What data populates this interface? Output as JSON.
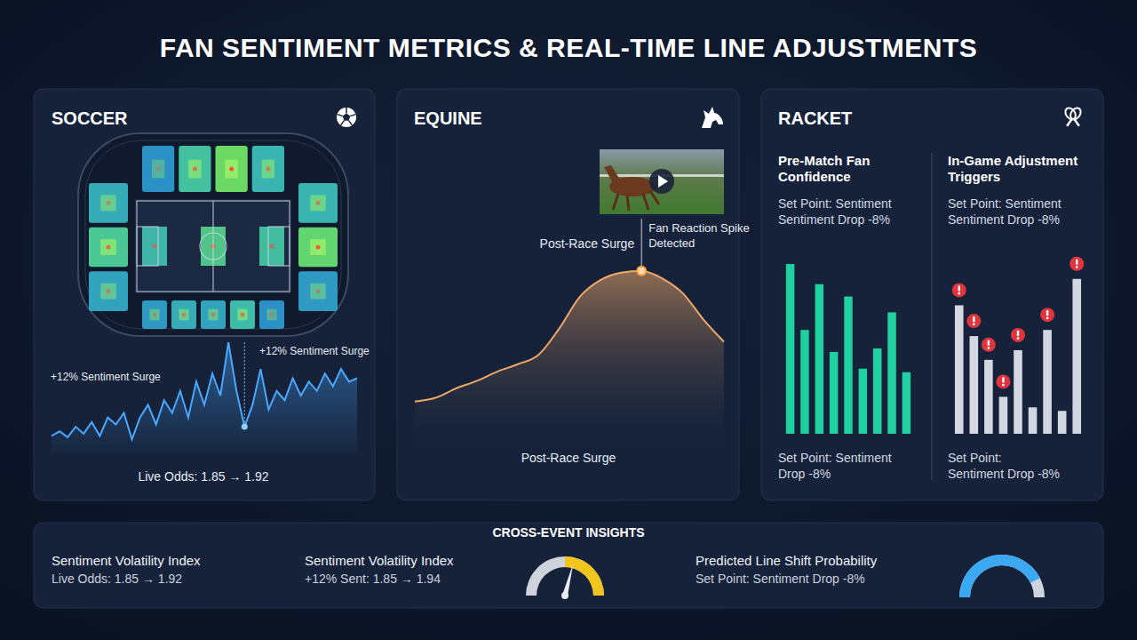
{
  "title": "FAN SENTIMENT METRICS & REAL-TIME LINE ADJUSTMENTS",
  "chart_data": [
    {
      "type": "line",
      "title": "SOCCER",
      "color": "#4aa8ff",
      "tick_labels": false,
      "ylim": [
        0,
        100
      ],
      "values": [
        15,
        19,
        14,
        23,
        17,
        27,
        15,
        31,
        25,
        35,
        12,
        31,
        42,
        25,
        46,
        35,
        54,
        31,
        62,
        42,
        69,
        50,
        96,
        54,
        23,
        42,
        73,
        38,
        54,
        46,
        65,
        50,
        62,
        54,
        69,
        58,
        73,
        62,
        65
      ],
      "annotations": [
        "+12% Sentiment Surge",
        "+12% Sentiment Surge",
        "Live Odds: 1.85 → 1.92"
      ],
      "heat": {
        "top": [
          40,
          70,
          95,
          60
        ],
        "bottom": [
          45,
          55,
          50,
          65,
          40
        ],
        "left": [
          55,
          75,
          50
        ],
        "right": [
          60,
          90,
          45
        ],
        "pitch": [
          65,
          80,
          70
        ]
      },
      "heat_lim": [
        0,
        100
      ]
    },
    {
      "type": "area",
      "title": "EQUINE",
      "color": "#f0a868",
      "tick_labels": false,
      "ylim": [
        0,
        100
      ],
      "values": [
        23,
        25,
        30,
        34,
        39,
        43,
        48,
        62,
        79,
        88,
        92,
        93,
        89,
        81,
        67,
        55
      ],
      "annotations": [
        "Post-Race Surge",
        "Fan Reaction Spike Detected",
        "Post-Race Surge"
      ]
    },
    {
      "type": "bar",
      "title": "RACKET",
      "subtitle": "Pre-Match Fan Confidence",
      "color": "#1fd1a0",
      "tick_labels": false,
      "ylim": [
        0,
        100
      ],
      "values": [
        96.5,
        59,
        85,
        46.5,
        78,
        37,
        48.5,
        69,
        35
      ],
      "annotations": {
        "top": [
          "Set Point: Sentiment",
          "Sentiment Drop -8%"
        ],
        "bottom": [
          "Set Point: Sentiment",
          "Drop -8%"
        ]
      }
    },
    {
      "type": "bar",
      "subtitle": "In-Game Adjustment Triggers",
      "color": "#d3d7df",
      "tick_labels": false,
      "ylim": [
        0,
        100
      ],
      "values": [
        73,
        55.5,
        42,
        21,
        47.5,
        15,
        59,
        13,
        88
      ],
      "alerts": [
        true,
        true,
        true,
        true,
        true,
        false,
        true,
        false,
        true
      ],
      "annotations": {
        "top": [
          "Set Point: Sentiment",
          "Sentiment Drop -8%"
        ],
        "bottom": [
          "Set Point:",
          "Sentiment Drop -8%"
        ]
      }
    }
  ],
  "insights": {
    "title": "CROSS-EVENT INSIGHTS",
    "items": [
      {
        "label": "Sentiment Volatility Index",
        "detail": "Live Odds: 1.85 → 1.92"
      },
      {
        "label": "Sentiment Volatility Index",
        "detail": "+12% Sent: 1.85 → 1.94",
        "gauge": {
          "value": 58,
          "lim": [
            0,
            100
          ],
          "band": [
            50,
            100
          ]
        }
      },
      {
        "label": "Predicted Line Shift Probability",
        "detail": "Set Point: Sentiment Drop -8%",
        "gauge": {
          "value": 85,
          "lim": [
            0,
            100
          ]
        }
      }
    ]
  }
}
